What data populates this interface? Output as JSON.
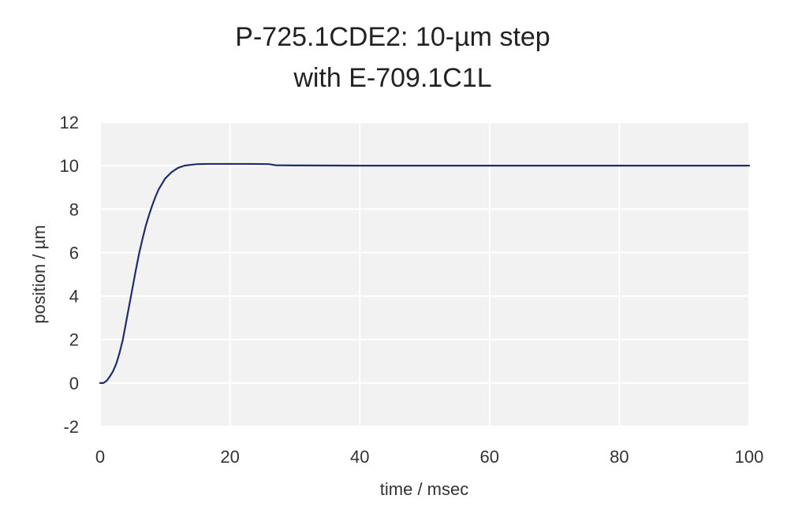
{
  "chart_data": {
    "type": "line",
    "title": [
      "P-725.1CDE2: 10-µm step",
      "with E-709.1C1L"
    ],
    "xlabel": "time / msec",
    "ylabel": "position / µm",
    "xlim": [
      0,
      100
    ],
    "ylim": [
      -2,
      12
    ],
    "x_ticks": [
      0,
      20,
      40,
      60,
      80,
      100
    ],
    "y_ticks": [
      -2,
      0,
      2,
      4,
      6,
      8,
      10,
      12
    ],
    "grid": true,
    "legend": "none",
    "series": [
      {
        "color": "#1f2d6b",
        "points": [
          [
            0,
            0.0
          ],
          [
            0.5,
            0.0
          ],
          [
            1,
            0.1
          ],
          [
            1.5,
            0.3
          ],
          [
            2,
            0.55
          ],
          [
            2.5,
            0.9
          ],
          [
            3,
            1.4
          ],
          [
            3.5,
            2.0
          ],
          [
            4,
            2.8
          ],
          [
            4.5,
            3.6
          ],
          [
            5,
            4.4
          ],
          [
            5.5,
            5.2
          ],
          [
            6,
            5.95
          ],
          [
            6.5,
            6.6
          ],
          [
            7,
            7.2
          ],
          [
            7.5,
            7.7
          ],
          [
            8,
            8.15
          ],
          [
            8.5,
            8.55
          ],
          [
            9,
            8.9
          ],
          [
            9.5,
            9.15
          ],
          [
            10,
            9.4
          ],
          [
            11,
            9.7
          ],
          [
            12,
            9.9
          ],
          [
            13,
            10.0
          ],
          [
            14,
            10.04
          ],
          [
            15,
            10.07
          ],
          [
            17,
            10.08
          ],
          [
            20,
            10.08
          ],
          [
            23,
            10.08
          ],
          [
            26,
            10.07
          ],
          [
            27,
            10.02
          ],
          [
            30,
            10.01
          ],
          [
            40,
            10.0
          ],
          [
            60,
            10.0
          ],
          [
            80,
            10.0
          ],
          [
            100,
            10.0
          ]
        ]
      }
    ]
  }
}
